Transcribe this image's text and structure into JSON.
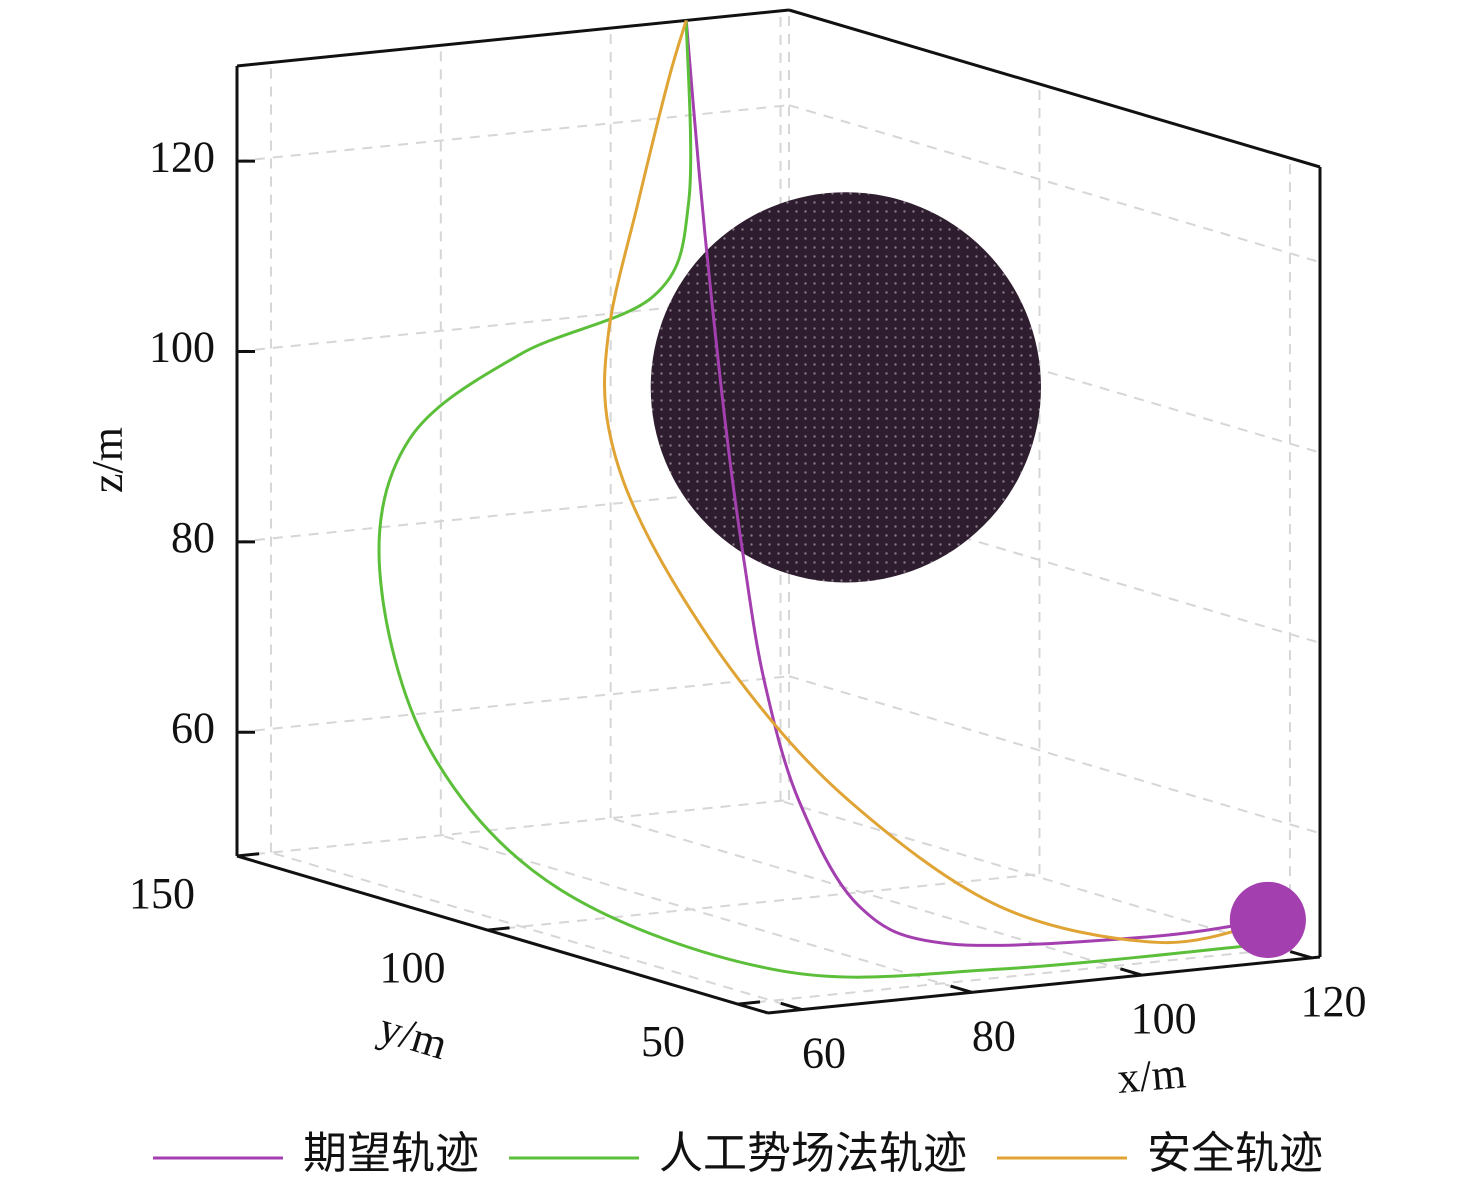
{
  "chart_data": {
    "type": "line3d",
    "xlabel": "x/m",
    "ylabel": "y/m",
    "zlabel": "z/m",
    "xlim": [
      56,
      121
    ],
    "ylim": [
      44,
      150
    ],
    "zlim": [
      47,
      130
    ],
    "xticks": [
      60,
      80,
      100,
      120
    ],
    "yticks": [
      50,
      100,
      150
    ],
    "zticks": [
      60,
      80,
      100,
      120
    ],
    "grid": true,
    "legend": "bottom",
    "series": [
      {
        "name": "期望轨迹",
        "color": "#a43fb0",
        "x": [
          118.4,
          110.4,
          92.7,
          88.0,
          86.8,
          88.6,
          92.1,
          96.2,
          100.1,
          104.5,
          108.9
        ],
        "y": [
          50,
          60,
          70,
          80,
          90,
          100,
          110,
          120,
          130,
          140,
          150
        ],
        "z": [
          50.2,
          47.6,
          46.9,
          49.7,
          59.3,
          70.2,
          81.0,
          90.6,
          104.5,
          116.2,
          130.0
        ]
      },
      {
        "name": "人工势场法轨迹",
        "color": "#5cbf3a",
        "x": [
          119.8,
          92.7,
          72.7,
          52.7,
          43.3,
          43.3,
          52.7,
          71.5,
          93.3,
          103.3,
          108.9
        ],
        "y": [
          50,
          60,
          70,
          80,
          90,
          100,
          110,
          120,
          130,
          140,
          150
        ],
        "z": [
          47.7,
          45.8,
          45.9,
          54.7,
          68.7,
          86.1,
          97.3,
          102.9,
          105.6,
          113.1,
          130.0
        ]
      },
      {
        "name": "安全轨迹",
        "color": "#e0a435",
        "x": [
          118.8,
          111.5,
          98.6,
          86.8,
          79.8,
          75.1,
          76.2,
          82.1,
          91.5,
          100.9,
          108.9
        ],
        "y": [
          50,
          60,
          70,
          80,
          90,
          100,
          110,
          120,
          130,
          140,
          150
        ],
        "z": [
          50.1,
          46.9,
          50.3,
          60.9,
          72.6,
          86.3,
          96.2,
          104.6,
          115.8,
          126.0,
          130.0
        ]
      }
    ],
    "obstacle": {
      "center": [
        98.2,
        100,
        100.2
      ],
      "radius": 20.5,
      "color": "#2e1d2e"
    },
    "goal": {
      "center": [
        118.4,
        50,
        50.2
      ],
      "radius": 4,
      "color": "#a43fb0"
    }
  }
}
